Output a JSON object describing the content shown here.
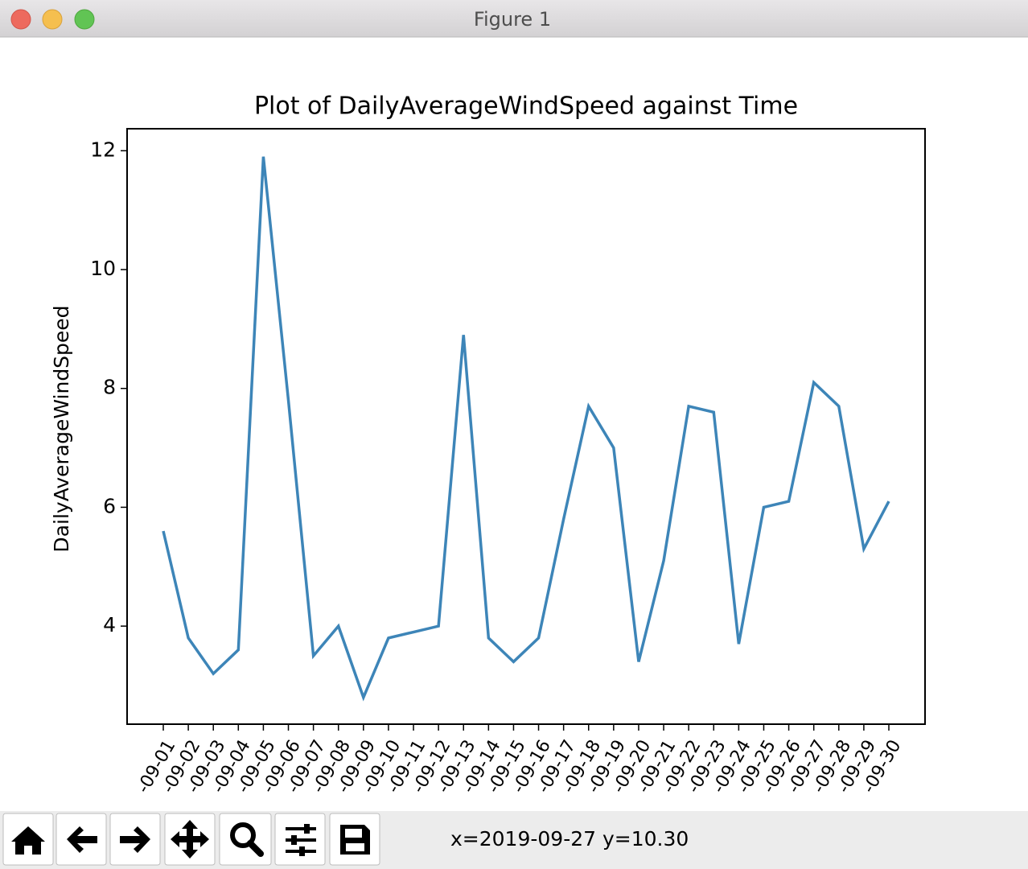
{
  "window": {
    "title": "Figure 1",
    "status": "x=2019-09-27 y=10.30"
  },
  "chart_data": {
    "type": "line",
    "title": "Plot of DailyAverageWindSpeed against Time",
    "y_label": "DailyAverageWindSpeed",
    "categories": [
      "-09-01",
      "-09-02",
      "-09-03",
      "-09-04",
      "-09-05",
      "-09-06",
      "-09-07",
      "-09-08",
      "-09-09",
      "-09-10",
      "-09-11",
      "-09-12",
      "-09-13",
      "-09-14",
      "-09-15",
      "-09-16",
      "-09-17",
      "-09-18",
      "-09-19",
      "-09-20",
      "-09-21",
      "-09-22",
      "-09-23",
      "-09-24",
      "-09-25",
      "-09-26",
      "-09-27",
      "-09-28",
      "-09-29",
      "-09-30"
    ],
    "series": [
      {
        "name": "DailyAverageWindSpeed",
        "color": "#3d85b8",
        "values": [
          5.6,
          3.8,
          3.2,
          3.6,
          11.9,
          7.8,
          3.5,
          4.0,
          2.8,
          3.8,
          3.9,
          4.0,
          8.9,
          3.8,
          3.4,
          3.8,
          5.8,
          7.7,
          7.0,
          3.4,
          5.1,
          7.7,
          7.6,
          3.7,
          6.0,
          6.1,
          8.1,
          7.7,
          5.3,
          6.1
        ]
      }
    ],
    "ylim": [
      2.35,
      12.37
    ],
    "yticks": [
      4,
      6,
      8,
      10,
      12
    ],
    "grid": false
  }
}
